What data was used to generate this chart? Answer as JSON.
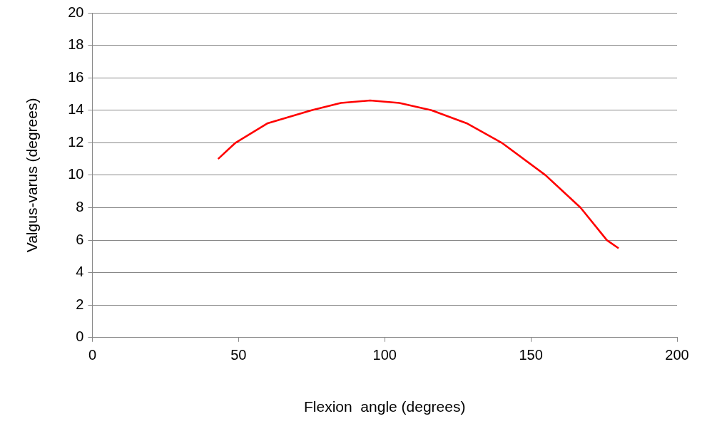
{
  "chart_data": {
    "type": "line",
    "xlabel": "Flexion  angle (degrees)",
    "ylabel": "Valgus-varus (degrees)",
    "x": [
      43,
      49,
      60,
      75,
      85,
      95,
      105,
      116,
      128,
      140,
      155,
      167,
      176,
      180
    ],
    "series": [
      {
        "color": "#ff0000",
        "values": [
          11.0,
          12,
          13.2,
          14,
          14.45,
          14.6,
          14.45,
          14,
          13.2,
          12,
          10,
          8,
          6,
          5.5
        ]
      }
    ],
    "xlim": [
      0,
      200
    ],
    "xticks": [
      0,
      50,
      100,
      150,
      200
    ],
    "ylim": [
      0,
      20
    ],
    "yticks": [
      0,
      2,
      4,
      6,
      8,
      10,
      12,
      14,
      16,
      18,
      20
    ],
    "grid": "y",
    "legend": false,
    "marker": "none",
    "line_style": "solid"
  }
}
